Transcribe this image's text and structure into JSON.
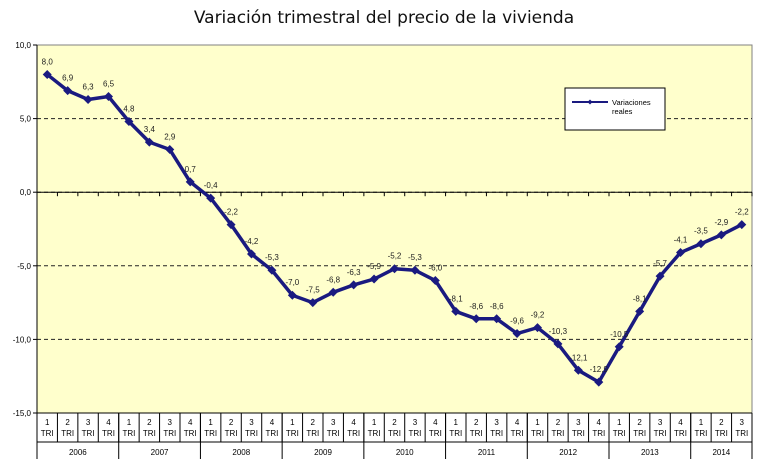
{
  "chart_data": {
    "type": "line",
    "title": "Variación trimestral del precio de la vivienda",
    "ylim": [
      -15,
      10
    ],
    "yticks": [
      "10,0",
      "5,0",
      "0,0",
      "-5,0",
      "-10,0",
      "-15,0"
    ],
    "ytick_values": [
      10,
      5,
      0,
      -5,
      -10,
      -15
    ],
    "grid": "dashed horizontal",
    "legend": {
      "placement": "top-right",
      "label_line1": "Variaciones",
      "label_line2": "reales"
    },
    "quarter_label": "TRI",
    "years": [
      "2006",
      "2007",
      "2008",
      "2009",
      "2010",
      "2011",
      "2012",
      "2013",
      "2014"
    ],
    "quarters_per_year": [
      4,
      4,
      4,
      4,
      4,
      4,
      4,
      4,
      3
    ],
    "series": [
      {
        "name": "Variaciones reales",
        "color": "#1a1a80",
        "values": [
          8.0,
          6.9,
          6.3,
          6.5,
          4.8,
          3.4,
          2.9,
          0.7,
          -0.4,
          -2.2,
          -4.2,
          -5.3,
          -7.0,
          -7.5,
          -6.8,
          -6.3,
          -5.9,
          -5.2,
          -5.3,
          -6.0,
          -8.1,
          -8.6,
          -8.6,
          -9.6,
          -9.2,
          -10.3,
          -12.1,
          -12.9,
          -10.5,
          -8.1,
          -5.7,
          -4.1,
          -3.5,
          -2.9,
          -2.2
        ],
        "labels": [
          "8,0",
          "6,9",
          "6,3",
          "6,5",
          "4,8",
          "3,4",
          "2,9",
          "0,7",
          "-0,4",
          "-2,2",
          "-4,2",
          "-5,3",
          "-7,0",
          "-7,5",
          "-6,8",
          "-6,3",
          "-5,9",
          "-5,2",
          "-5,3",
          "-6,0",
          "-8,1",
          "-8,6",
          "-8,6",
          "-9,6",
          "-9,2",
          "-10,3",
          "-12,1",
          "-12,9",
          "-10,5",
          "-8,1",
          "-5,7",
          "-4,1",
          "-3,5",
          "-2,9",
          "-2,2"
        ]
      }
    ],
    "plot_background": "#ffffcc"
  }
}
